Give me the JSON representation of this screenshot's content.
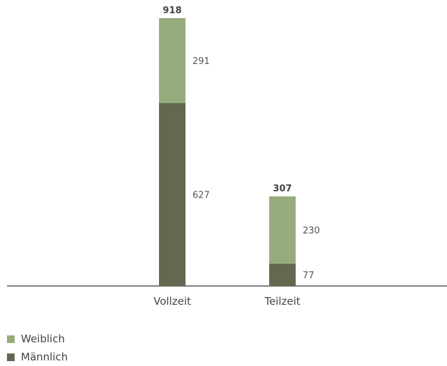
{
  "chart_data": {
    "type": "bar",
    "stacked": true,
    "categories": [
      "Vollzeit",
      "Teilzeit"
    ],
    "series": [
      {
        "name": "Männlich",
        "values": [
          627,
          77
        ],
        "color": "#636950"
      },
      {
        "name": "Weiblich",
        "values": [
          291,
          230
        ],
        "color": "#97ac7c"
      }
    ],
    "totals": [
      918,
      307
    ],
    "ylim": [
      0,
      940
    ],
    "grid": false,
    "legend_position": "bottom-left"
  },
  "legend": [
    {
      "label": "Weiblich",
      "color": "#97ac7c"
    },
    {
      "label": "Männlich",
      "color": "#636950"
    }
  ]
}
